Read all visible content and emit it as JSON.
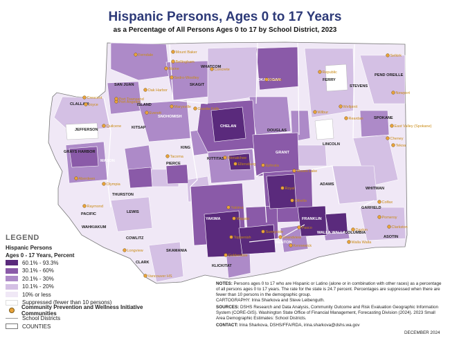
{
  "title": "Hispanic Persons, Ages 0 to 17 Years",
  "subtitle": "as a Percentage of All Persons Ages 0 to 17 by School District, 2023",
  "legend": {
    "heading": "LEGEND",
    "group": "Hispanic Persons",
    "subgroup": "Ages 0 - 17 Years, Percent",
    "classes": [
      {
        "label": "60.1% - 93.3%",
        "color": "#5a2a7c"
      },
      {
        "label": "30.1% - 60%",
        "color": "#8a5aa8"
      },
      {
        "label": "20.1% - 30%",
        "color": "#ad8ac8"
      },
      {
        "label": "10.1% - 20%",
        "color": "#d4c0e4"
      },
      {
        "label": "10% or less",
        "color": "#f0e8f6"
      },
      {
        "label": "Suppressed (fewer than 10 persons)",
        "color": "#ffffff"
      }
    ],
    "cpwi_label": "Community Prevention and Wellness Initiative Communities",
    "districts_label": "School Districts",
    "counties_label": "COUNTIES"
  },
  "counties": [
    {
      "name": "WHATCOM"
    },
    {
      "name": "SAN JUAN"
    },
    {
      "name": "SKAGIT"
    },
    {
      "name": "OKANOGAN"
    },
    {
      "name": "FERRY"
    },
    {
      "name": "STEVENS"
    },
    {
      "name": "PEND OREILLE"
    },
    {
      "name": "CLALLAM"
    },
    {
      "name": "ISLAND"
    },
    {
      "name": "SNOHOMISH"
    },
    {
      "name": "JEFFERSON"
    },
    {
      "name": "KITSAP"
    },
    {
      "name": "CHELAN"
    },
    {
      "name": "DOUGLAS"
    },
    {
      "name": "LINCOLN"
    },
    {
      "name": "SPOKANE"
    },
    {
      "name": "KING"
    },
    {
      "name": "GRAYS HARBOR"
    },
    {
      "name": "MASON"
    },
    {
      "name": "PIERCE"
    },
    {
      "name": "KITTITAS"
    },
    {
      "name": "GRANT"
    },
    {
      "name": "ADAMS"
    },
    {
      "name": "WHITMAN"
    },
    {
      "name": "THURSTON"
    },
    {
      "name": "PACIFIC"
    },
    {
      "name": "LEWIS"
    },
    {
      "name": "YAKIMA"
    },
    {
      "name": "FRANKLIN"
    },
    {
      "name": "GARFIELD"
    },
    {
      "name": "WAHKIAKUM"
    },
    {
      "name": "COWLITZ"
    },
    {
      "name": "BENTON"
    },
    {
      "name": "WALLA WALLA"
    },
    {
      "name": "COLUMBIA"
    },
    {
      "name": "ASOTIN"
    },
    {
      "name": "SKAMANIA"
    },
    {
      "name": "CLARK"
    },
    {
      "name": "KLICKITAT"
    }
  ],
  "communities": [
    {
      "name": "Ferndale"
    },
    {
      "name": "Mount Baker"
    },
    {
      "name": "Bellingham"
    },
    {
      "name": "Blaine"
    },
    {
      "name": "Concrete"
    },
    {
      "name": "Sedro-Woolley"
    },
    {
      "name": "Oroville"
    },
    {
      "name": "Republic"
    },
    {
      "name": "Selkirk"
    },
    {
      "name": "Newport"
    },
    {
      "name": "Crescent"
    },
    {
      "name": "Joyce"
    },
    {
      "name": "Port Angeles"
    },
    {
      "name": "Port Townsend"
    },
    {
      "name": "Oak Harbor"
    },
    {
      "name": "Marysville"
    },
    {
      "name": "Granite Falls"
    },
    {
      "name": "Quilcene"
    },
    {
      "name": "Everett"
    },
    {
      "name": "Wilbur"
    },
    {
      "name": "Wellpinit"
    },
    {
      "name": "Reardan"
    },
    {
      "name": "East Valley (Spokane)"
    },
    {
      "name": "Cheney"
    },
    {
      "name": "Tekoa"
    },
    {
      "name": "Wenatchee"
    },
    {
      "name": "Ephrata"
    },
    {
      "name": "Moses Lake"
    },
    {
      "name": "Royal"
    },
    {
      "name": "Othello"
    },
    {
      "name": "Ellensburg"
    },
    {
      "name": "Tacoma"
    },
    {
      "name": "Olympia"
    },
    {
      "name": "Aberdeen"
    },
    {
      "name": "Raymond"
    },
    {
      "name": "Yakima"
    },
    {
      "name": "Wapato"
    },
    {
      "name": "Toppenish"
    },
    {
      "name": "Sunnyside"
    },
    {
      "name": "Grandview"
    },
    {
      "name": "Kennewick"
    },
    {
      "name": "Pasco"
    },
    {
      "name": "Walla Walla"
    },
    {
      "name": "Dayton"
    },
    {
      "name": "Pomeroy"
    },
    {
      "name": "Clarkston"
    },
    {
      "name": "Colfax"
    },
    {
      "name": "Longview"
    },
    {
      "name": "Vancouver HS"
    },
    {
      "name": "Goldendale"
    }
  ],
  "notes": {
    "notes_label": "NOTES:",
    "notes_text": "Persons ages 0 to 17 who are Hispanic or Latino (alone or in combination with other races) as a percentage of all persons ages 0 to 17 years. The rate for the state is 24.7 percent. Percentages are suppressed when there are fewer than 10 persons in the demographic group.",
    "cartography": "CARTOGRAPHY: Irina Sharkova and Steve Leibenguth.",
    "sources_label": "SOURCES:",
    "sources_text": "DSHS Research and Data Analysis, Community Outcome and Risk Evaluation Geographic Information System (CORE-GIS). Washington State Office of Financial Management, Forecasting Division (2024). 2023 Small Area Demographic Estimates: School Districts.",
    "contact_label": "CONTACT:",
    "contact_text": "Irina Sharkova, DSHS/FFA/RDA, irina.sharkova@dshs.wa.gov",
    "date": "DECEMBER 2024"
  }
}
